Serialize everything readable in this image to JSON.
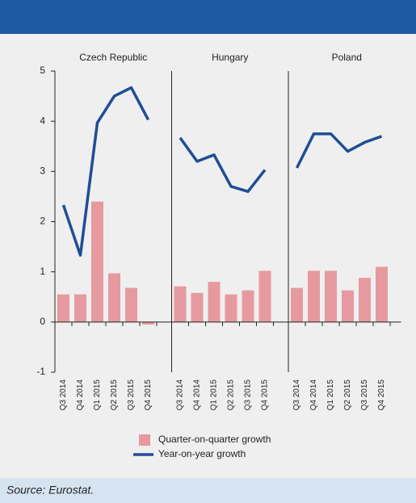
{
  "chart_data": {
    "type": "bar",
    "categories": [
      "Q3 2014",
      "Q4 2014",
      "Q1 2015",
      "Q2 2015",
      "Q3 2015",
      "Q4 2015"
    ],
    "ylim": [
      -1,
      5
    ],
    "yticks": [
      -1,
      0,
      1,
      2,
      3,
      4,
      5
    ],
    "series": [
      {
        "name": "Quarter-on-quarter growth",
        "color": "#e69a9f",
        "type": "bar"
      },
      {
        "name": "Year-on-year growth",
        "color": "#1f4e96",
        "type": "line"
      }
    ],
    "panels": [
      {
        "title": "Czech Republic",
        "series": [
          {
            "values": [
              0.55,
              0.55,
              2.4,
              0.97,
              0.68,
              -0.05
            ]
          },
          {
            "values": [
              2.33,
              1.33,
              3.97,
              4.5,
              4.67,
              4.03
            ]
          }
        ]
      },
      {
        "title": "Hungary",
        "series": [
          {
            "values": [
              0.71,
              0.58,
              0.8,
              0.55,
              0.63,
              1.02
            ]
          },
          {
            "values": [
              3.67,
              3.2,
              3.33,
              2.7,
              2.6,
              3.03
            ]
          }
        ]
      },
      {
        "title": "Poland",
        "series": [
          {
            "values": [
              0.68,
              1.02,
              1.02,
              0.63,
              0.88,
              1.1
            ]
          },
          {
            "values": [
              3.07,
              3.75,
              3.75,
              3.4,
              3.58,
              3.7
            ]
          }
        ]
      }
    ],
    "source": "Source: Eurostat."
  }
}
